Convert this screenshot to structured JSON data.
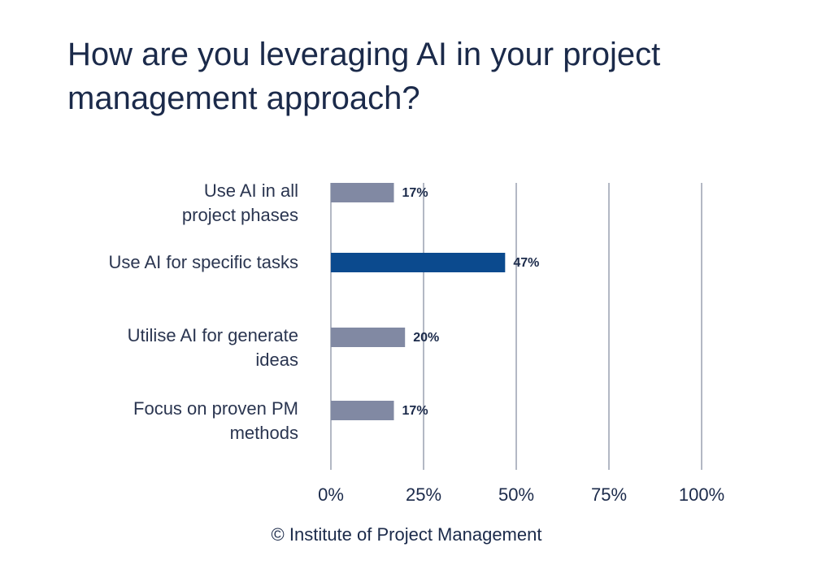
{
  "chart_data": {
    "type": "bar",
    "orientation": "horizontal",
    "title": "How are you leveraging AI in your project management approach?",
    "categories": [
      "Use AI in all\nproject phases",
      "Use AI for specific tasks",
      "Utilise AI for generate\nideas",
      "Focus on proven PM\nmethods"
    ],
    "values": [
      17,
      47,
      20,
      17
    ],
    "value_labels": [
      "17%",
      "47%",
      "20%",
      "17%"
    ],
    "colors": [
      "#8189a3",
      "#0b4a8e",
      "#8189a3",
      "#8189a3"
    ],
    "xlim": [
      0,
      100
    ],
    "xticks": [
      {
        "value": 0,
        "label": "0%"
      },
      {
        "value": 25,
        "label": "25%"
      },
      {
        "value": 50,
        "label": "50%"
      },
      {
        "value": 75,
        "label": "75%"
      },
      {
        "value": 100,
        "label": "100%"
      }
    ],
    "grid": true,
    "source": "© Institute of Project Management"
  }
}
